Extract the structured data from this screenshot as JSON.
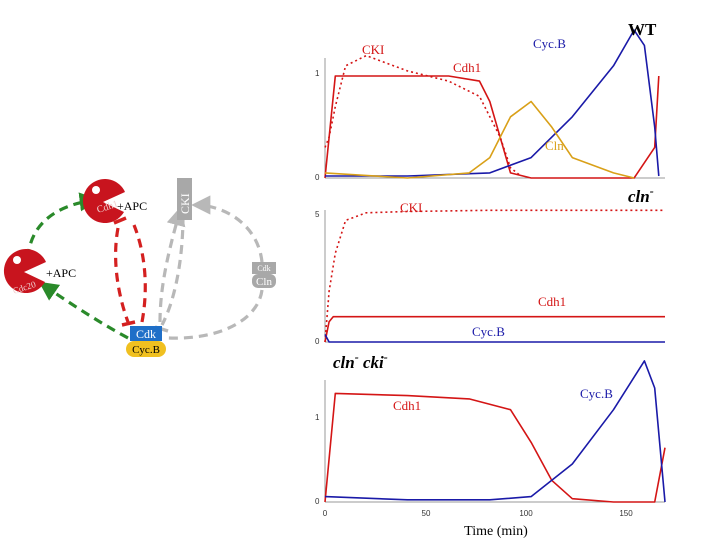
{
  "network": {
    "cdh1_label": "Cdh1",
    "cdh1_apc": "+APC",
    "cdc20_label": "Cdc20",
    "cdc20_apc": "+APC",
    "cki_label": "CKI",
    "cln_cdk_label": "Cdk",
    "cln_label": "Cln",
    "cdk_label": "Cdk",
    "cycb_label": "Cyc.B"
  },
  "panels": {
    "wt": {
      "title": "WT",
      "labels": {
        "cki": "CKI",
        "cycb": "Cyc.B",
        "cdh1": "Cdh1",
        "cln": "Cln"
      },
      "y_ticks": [
        "1",
        "0"
      ]
    },
    "cln": {
      "title": "cln",
      "title_sup": "-",
      "labels": {
        "cki": "CKI",
        "cdh1": "Cdh1",
        "cycb": "Cyc.B"
      },
      "y_ticks": [
        "5",
        "0"
      ]
    },
    "clncki": {
      "title_a": "cln",
      "title_a_sup": "-",
      "title_b": "cki",
      "title_b_sup": "-",
      "labels": {
        "cdh1": "Cdh1",
        "cycb": "Cyc.B"
      },
      "y_ticks": [
        "1",
        "0"
      ]
    }
  },
  "x_axis": {
    "ticks": [
      "0",
      "50",
      "100",
      "150"
    ],
    "label": "Time (min)"
  },
  "colors": {
    "cycb": "#1a1aa8",
    "cdh1": "#d41515",
    "cki": "#d41515",
    "cln": "#d9a018",
    "activation": "#2a8a2a",
    "inhibition_red": "#d42020",
    "inhibition_gray": "#b8b8b8",
    "cdk_box": "#1f6fc8",
    "cycb_box": "#f0c020"
  },
  "chart_data": [
    {
      "type": "line",
      "panel": "WT",
      "x_range": [
        0,
        165
      ],
      "ylim": [
        0,
        1.5
      ],
      "series": [
        {
          "name": "CKI",
          "style": "dotted",
          "x": [
            0,
            2,
            5,
            10,
            20,
            40,
            60,
            75,
            85,
            90,
            95
          ],
          "y": [
            0.3,
            0.4,
            0.7,
            1.1,
            1.2,
            1.05,
            0.95,
            0.8,
            0.4,
            0.1,
            0.02
          ]
        },
        {
          "name": "Cdh1",
          "style": "solid",
          "x": [
            0,
            5,
            10,
            20,
            40,
            60,
            75,
            80,
            90,
            100,
            120,
            150,
            160,
            162
          ],
          "y": [
            0,
            1.0,
            1.0,
            1.0,
            1.0,
            1.0,
            0.95,
            0.75,
            0.05,
            0.0,
            0.0,
            0.0,
            0.3,
            1.0
          ]
        },
        {
          "name": "Cyc.B",
          "style": "solid",
          "x": [
            0,
            40,
            80,
            100,
            120,
            140,
            150,
            155,
            160,
            162
          ],
          "y": [
            0.02,
            0.02,
            0.05,
            0.2,
            0.6,
            1.1,
            1.45,
            1.3,
            0.5,
            0.02
          ]
        },
        {
          "name": "Cln",
          "style": "solid",
          "x": [
            0,
            40,
            70,
            80,
            90,
            100,
            110,
            120,
            140,
            150
          ],
          "y": [
            0.05,
            0.0,
            0.05,
            0.2,
            0.6,
            0.75,
            0.5,
            0.2,
            0.05,
            0.0
          ]
        }
      ]
    },
    {
      "type": "line",
      "panel": "cln-",
      "x_range": [
        0,
        165
      ],
      "ylim": [
        0,
        6
      ],
      "series": [
        {
          "name": "CKI",
          "style": "dotted",
          "x": [
            0,
            2,
            5,
            10,
            20,
            40,
            80,
            120,
            165
          ],
          "y": [
            0,
            2.0,
            3.5,
            4.8,
            5.1,
            5.15,
            5.2,
            5.2,
            5.2
          ]
        },
        {
          "name": "Cdh1",
          "style": "solid",
          "x": [
            0,
            2,
            4,
            165
          ],
          "y": [
            0,
            0.8,
            1.0,
            1.0
          ]
        },
        {
          "name": "Cyc.B",
          "style": "solid",
          "x": [
            0,
            2,
            165
          ],
          "y": [
            0.3,
            0.0,
            0.0
          ]
        }
      ]
    },
    {
      "type": "line",
      "panel": "cln- cki-",
      "x_range": [
        0,
        165
      ],
      "ylim": [
        0,
        1.4
      ],
      "series": [
        {
          "name": "Cdh1",
          "style": "solid",
          "x": [
            0,
            5,
            40,
            70,
            90,
            100,
            110,
            120,
            140,
            160,
            165
          ],
          "y": [
            0.0,
            1.0,
            0.98,
            0.95,
            0.85,
            0.55,
            0.2,
            0.03,
            0.0,
            0.0,
            0.5
          ]
        },
        {
          "name": "Cyc.B",
          "style": "solid",
          "x": [
            0,
            40,
            80,
            100,
            120,
            140,
            155,
            160,
            165
          ],
          "y": [
            0.05,
            0.02,
            0.02,
            0.05,
            0.35,
            0.85,
            1.3,
            1.05,
            0.0
          ]
        }
      ]
    }
  ]
}
